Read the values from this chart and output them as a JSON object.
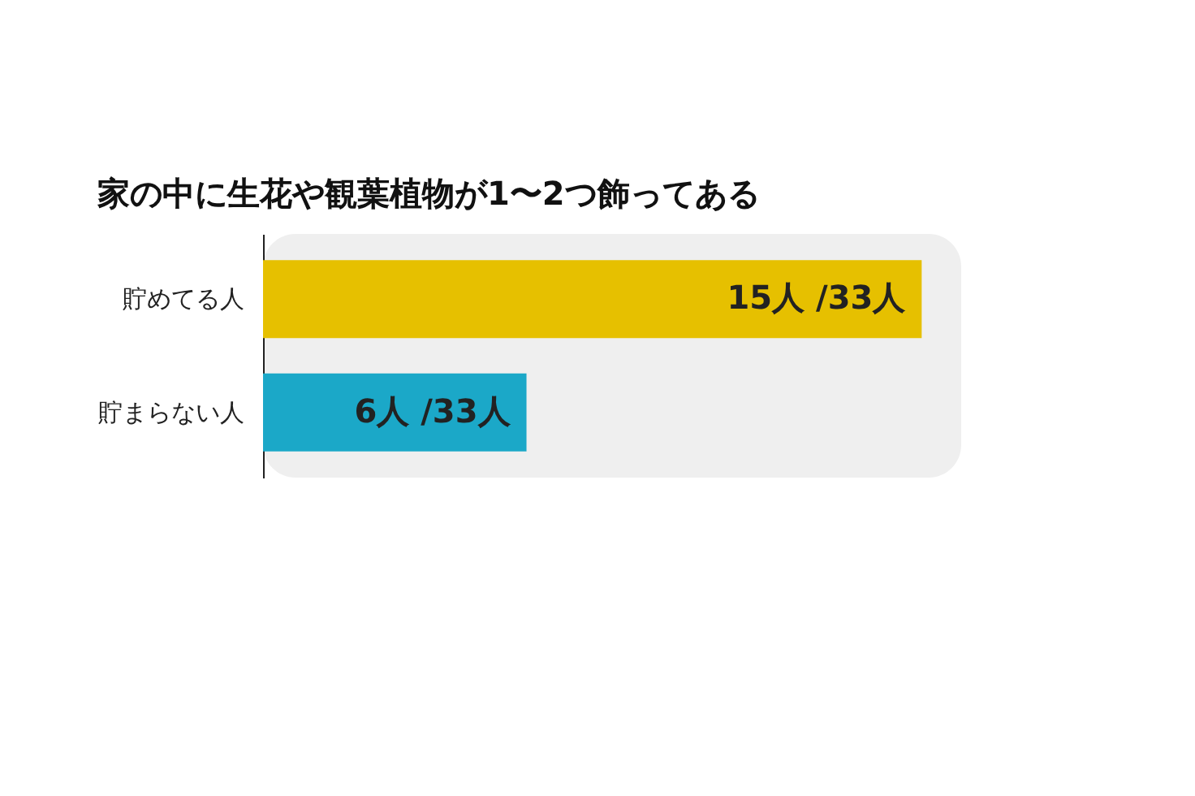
{
  "chart_data": {
    "type": "bar",
    "orientation": "horizontal",
    "title": "家の中に生花や観葉植物が1〜2つ飾ってある",
    "categories": [
      "貯めてる人",
      "貯まらない人"
    ],
    "values": [
      15,
      6
    ],
    "colors": [
      "#e6c000",
      "#1ba8c8"
    ],
    "value_labels": [
      "15人 /33人",
      "6人 /33人"
    ]
  }
}
